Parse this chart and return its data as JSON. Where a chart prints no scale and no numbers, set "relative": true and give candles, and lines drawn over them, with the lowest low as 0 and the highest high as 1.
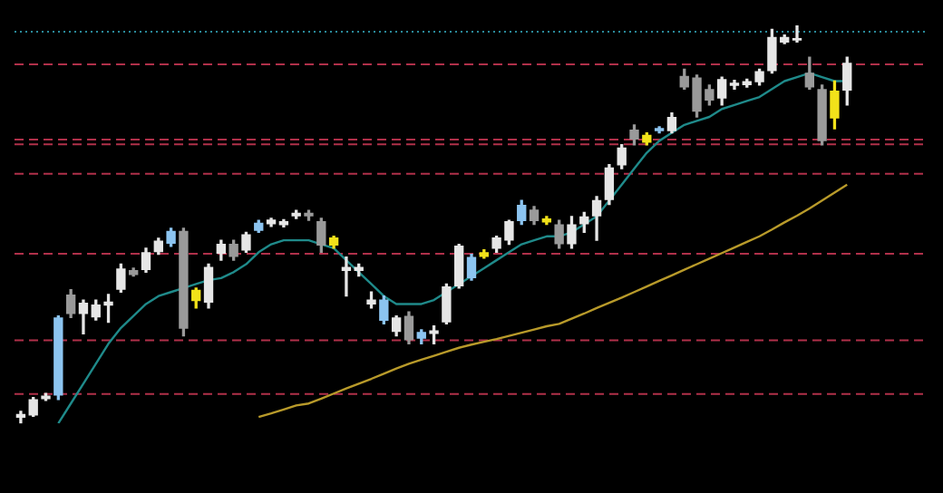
{
  "chart_data": {
    "type": "candlestick",
    "relative": true,
    "grid": false,
    "legend": false,
    "categories": [
      null,
      null,
      null,
      null,
      null,
      null,
      null,
      null,
      null,
      null,
      null,
      null,
      null,
      null,
      null,
      null,
      null,
      null,
      null,
      null,
      null,
      null,
      null,
      null,
      null,
      null,
      null,
      null,
      null,
      null,
      null,
      null,
      null,
      null,
      null,
      null,
      null,
      null,
      null,
      null,
      null,
      null,
      null,
      null,
      null,
      null,
      null,
      null,
      null,
      null,
      null,
      null,
      null,
      null,
      null,
      null,
      null,
      null,
      null,
      null,
      null,
      null,
      null,
      null,
      null,
      null,
      null,
      null,
      null,
      null,
      null,
      null,
      null
    ],
    "ohlc": [
      [
        0.014,
        0.03,
        0.0,
        0.024
      ],
      [
        0.02,
        0.065,
        0.018,
        0.061
      ],
      [
        0.061,
        0.075,
        0.058,
        0.07
      ],
      [
        0.07,
        0.27,
        0.06,
        0.266
      ],
      [
        0.324,
        0.336,
        0.266,
        0.275
      ],
      [
        0.275,
        0.31,
        0.225,
        0.303
      ],
      [
        0.266,
        0.31,
        0.26,
        0.299
      ],
      [
        0.296,
        0.324,
        0.254,
        0.306
      ],
      [
        0.336,
        0.4,
        0.33,
        0.389
      ],
      [
        0.385,
        0.39,
        0.37,
        0.373
      ],
      [
        0.385,
        0.44,
        0.38,
        0.43
      ],
      [
        0.43,
        0.465,
        0.425,
        0.459
      ],
      [
        0.451,
        0.49,
        0.445,
        0.484
      ],
      [
        0.484,
        0.49,
        0.22,
        0.238
      ],
      [
        0.307,
        0.34,
        0.29,
        0.336
      ],
      [
        0.303,
        0.4,
        0.29,
        0.393
      ],
      [
        0.426,
        0.46,
        0.41,
        0.451
      ],
      [
        0.451,
        0.46,
        0.41,
        0.418
      ],
      [
        0.434,
        0.48,
        0.43,
        0.475
      ],
      [
        0.484,
        0.51,
        0.48,
        0.504
      ],
      [
        0.5,
        0.515,
        0.495,
        0.512
      ],
      [
        0.498,
        0.512,
        0.494,
        0.508
      ],
      [
        0.52,
        0.535,
        0.515,
        0.529
      ],
      [
        0.529,
        0.535,
        0.51,
        0.52
      ],
      [
        0.508,
        0.515,
        0.43,
        0.447
      ],
      [
        0.447,
        0.47,
        0.44,
        0.467
      ],
      [
        0.383,
        0.418,
        0.32,
        0.393
      ],
      [
        0.383,
        0.4,
        0.37,
        0.393
      ],
      [
        0.299,
        0.33,
        0.29,
        0.311
      ],
      [
        0.258,
        0.32,
        0.25,
        0.311
      ],
      [
        0.23,
        0.27,
        0.22,
        0.266
      ],
      [
        0.27,
        0.28,
        0.2,
        0.209
      ],
      [
        0.213,
        0.235,
        0.2,
        0.23
      ],
      [
        0.225,
        0.245,
        0.2,
        0.234
      ],
      [
        0.254,
        0.35,
        0.25,
        0.344
      ],
      [
        0.344,
        0.45,
        0.34,
        0.447
      ],
      [
        0.365,
        0.425,
        0.36,
        0.418
      ],
      [
        0.418,
        0.436,
        0.415,
        0.43
      ],
      [
        0.439,
        0.47,
        0.43,
        0.467
      ],
      [
        0.459,
        0.51,
        0.45,
        0.508
      ],
      [
        0.508,
        0.56,
        0.5,
        0.549
      ],
      [
        0.537,
        0.545,
        0.5,
        0.508
      ],
      [
        0.505,
        0.52,
        0.5,
        0.515
      ],
      [
        0.5,
        0.51,
        0.44,
        0.45
      ],
      [
        0.45,
        0.52,
        0.44,
        0.5
      ],
      [
        0.5,
        0.53,
        0.48,
        0.52
      ],
      [
        0.52,
        0.57,
        0.46,
        0.561
      ],
      [
        0.561,
        0.65,
        0.55,
        0.643
      ],
      [
        0.648,
        0.7,
        0.64,
        0.693
      ],
      [
        0.738,
        0.75,
        0.7,
        0.713
      ],
      [
        0.705,
        0.73,
        0.7,
        0.725
      ],
      [
        0.734,
        0.745,
        0.73,
        0.742
      ],
      [
        0.734,
        0.78,
        0.73,
        0.77
      ],
      [
        0.873,
        0.89,
        0.84,
        0.844
      ],
      [
        0.869,
        0.875,
        0.77,
        0.783
      ],
      [
        0.84,
        0.85,
        0.8,
        0.811
      ],
      [
        0.816,
        0.87,
        0.8,
        0.865
      ],
      [
        0.848,
        0.862,
        0.84,
        0.856
      ],
      [
        0.85,
        0.865,
        0.845,
        0.86
      ],
      [
        0.857,
        0.89,
        0.85,
        0.885
      ],
      [
        0.885,
        0.99,
        0.88,
        0.971
      ],
      [
        0.957,
        0.976,
        0.954,
        0.971
      ],
      [
        0.962,
        1.0,
        0.958,
        0.968
      ],
      [
        0.881,
        0.92,
        0.84,
        0.844
      ],
      [
        0.84,
        0.85,
        0.7,
        0.709
      ],
      [
        0.836,
        0.86,
        0.74,
        0.766
      ],
      [
        0.836,
        0.92,
        0.8,
        0.906
      ],
      null,
      null,
      null,
      null,
      null,
      null
    ],
    "colors": [
      "#e6e6e6",
      "#e6e6e6",
      "#e6e6e6",
      "#8cc4f0",
      "#9a9a9a",
      "#e6e6e6",
      "#e6e6e6",
      "#e6e6e6",
      "#e6e6e6",
      "#9a9a9a",
      "#e6e6e6",
      "#e6e6e6",
      "#8cc4f0",
      "#9a9a9a",
      "#f2e21a",
      "#e6e6e6",
      "#e6e6e6",
      "#9a9a9a",
      "#e6e6e6",
      "#8cc4f0",
      "#e6e6e6",
      "#e6e6e6",
      "#e6e6e6",
      "#9a9a9a",
      "#9a9a9a",
      "#f2e21a",
      "#e6e6e6",
      "#e6e6e6",
      "#e6e6e6",
      "#8cc4f0",
      "#e6e6e6",
      "#9a9a9a",
      "#8cc4f0",
      "#e6e6e6",
      "#e6e6e6",
      "#e6e6e6",
      "#8cc4f0",
      "#f2e21a",
      "#e6e6e6",
      "#e6e6e6",
      "#8cc4f0",
      "#9a9a9a",
      "#f2e21a",
      "#9a9a9a",
      "#e6e6e6",
      "#e6e6e6",
      "#e6e6e6",
      "#e6e6e6",
      "#e6e6e6",
      "#9a9a9a",
      "#f2e21a",
      "#8cc4f0",
      "#e6e6e6",
      "#9a9a9a",
      "#9a9a9a",
      "#9a9a9a",
      "#e6e6e6",
      "#e6e6e6",
      "#e6e6e6",
      "#e6e6e6",
      "#e6e6e6",
      "#e6e6e6",
      "#e6e6e6",
      "#9a9a9a",
      "#9a9a9a",
      "#f2e21a",
      "#e6e6e6",
      null,
      null,
      null,
      null,
      null,
      null
    ],
    "series": [
      {
        "type": "line",
        "color": "#1f8a8a",
        "values": [
          null,
          null,
          null,
          0.0,
          0.05,
          0.1,
          0.15,
          0.2,
          0.24,
          0.27,
          0.3,
          0.32,
          0.33,
          0.34,
          0.35,
          0.36,
          0.365,
          0.38,
          0.4,
          0.43,
          0.45,
          0.46,
          0.46,
          0.46,
          0.45,
          0.44,
          0.41,
          0.38,
          0.35,
          0.32,
          0.3,
          0.3,
          0.3,
          0.31,
          0.33,
          0.35,
          0.37,
          0.39,
          0.41,
          0.43,
          0.45,
          0.46,
          0.47,
          0.47,
          0.48,
          0.5,
          0.52,
          0.56,
          0.6,
          0.64,
          0.68,
          0.71,
          0.73,
          0.75,
          0.76,
          0.77,
          0.79,
          0.8,
          0.81,
          0.82,
          0.84,
          0.86,
          0.87,
          0.88,
          0.87,
          0.86,
          0.86,
          null,
          null,
          null,
          null,
          null,
          null
        ]
      },
      {
        "type": "line",
        "color": "#b89a2a",
        "values": [
          null,
          null,
          null,
          null,
          null,
          null,
          null,
          null,
          null,
          null,
          null,
          null,
          null,
          null,
          null,
          null,
          null,
          null,
          null,
          0.016,
          0.025,
          0.035,
          0.045,
          0.05,
          0.062,
          0.075,
          0.088,
          0.1,
          0.112,
          0.125,
          0.138,
          0.15,
          0.16,
          0.17,
          0.18,
          0.19,
          0.198,
          0.205,
          0.212,
          0.22,
          0.228,
          0.236,
          0.244,
          0.25,
          0.263,
          0.276,
          0.29,
          0.303,
          0.316,
          0.33,
          0.344,
          0.358,
          0.372,
          0.386,
          0.4,
          0.414,
          0.428,
          0.442,
          0.456,
          0.47,
          0.487,
          0.505,
          0.522,
          0.54,
          0.56,
          0.58,
          0.6,
          null,
          null,
          null,
          null,
          null,
          null
        ]
      }
    ],
    "ref_lines": [
      {
        "axis": "y",
        "value": 0.984,
        "color": "#2a8a9a",
        "line_style": "dotted"
      },
      {
        "axis": "y",
        "value": 0.902,
        "color": "#b0304a",
        "line_style": "dashed"
      },
      {
        "axis": "y",
        "value": 0.713,
        "color": "#b0304a",
        "line_style": "dashed"
      },
      {
        "axis": "y",
        "value": 0.701,
        "color": "#b0304a",
        "line_style": "dashed"
      },
      {
        "axis": "y",
        "value": 0.627,
        "color": "#b0304a",
        "line_style": "dashed"
      },
      {
        "axis": "y",
        "value": 0.426,
        "color": "#b0304a",
        "line_style": "dashed"
      },
      {
        "axis": "y",
        "value": 0.209,
        "color": "#b0304a",
        "line_style": "dashed"
      },
      {
        "axis": "y",
        "value": 0.074,
        "color": "#b0304a",
        "line_style": "dashed"
      }
    ]
  }
}
